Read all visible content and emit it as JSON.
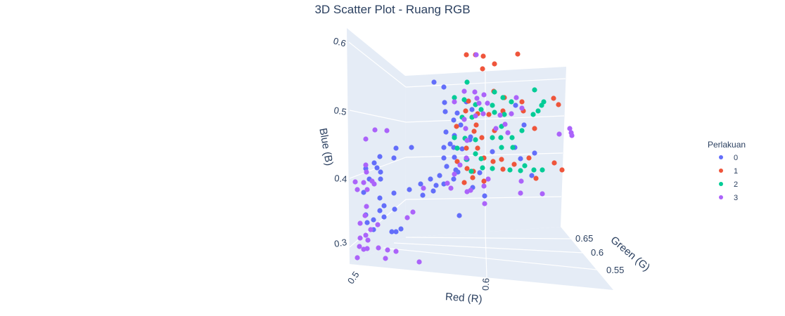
{
  "chart_data": {
    "type": "scatter",
    "title": "3D Scatter Plot - Ruang RGB",
    "xlabel": "Red (R)",
    "ylabel": "Green (G)",
    "zlabel": "Blue (B)",
    "x_ticks": [
      "0.5",
      "0.6"
    ],
    "y_ticks": [
      "0.55",
      "0.6",
      "0.65"
    ],
    "z_ticks": [
      "0.3",
      "0.4",
      "0.5",
      "0.6"
    ],
    "legend_title": "Perlakuan",
    "legend_position": "right",
    "series": [
      {
        "name": "0",
        "color": "#636efa"
      },
      {
        "name": "1",
        "color": "#ef553b"
      },
      {
        "name": "2",
        "color": "#00cc96"
      },
      {
        "name": "3",
        "color": "#ab63fa"
      }
    ]
  }
}
